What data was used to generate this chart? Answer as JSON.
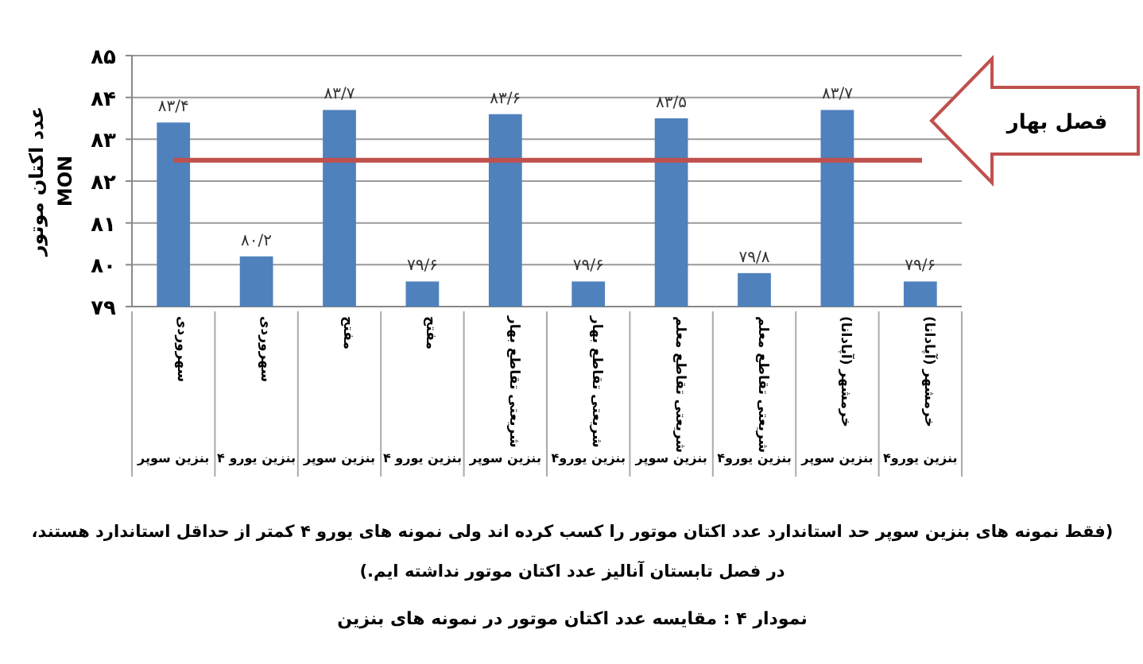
{
  "chart_data": {
    "type": "bar",
    "title": "نمودار ۴ : مقایسه عدد اکتان موتور در نمونه های بنزین",
    "ylabel": "عدد اکتان موتور\nMON",
    "categories": [
      "سهروردی\nبنزین سوپر",
      "سهروردی\nبنزین یورو ۴",
      "مفتح\nبنزین سوپر",
      "مفتح\nبنزین یورو ۴",
      "شریعتی تقاطع بهار\nبنزین سوپر",
      "شریعتی تقاطع بهار\nبنزین یورو۴",
      "شریعتی تقاطع معلم\nبنزین سوپر",
      "شریعتی تقاطع معلم\nبنزین یورو۴",
      "خرمشهر (آپادانا)\nبنزین سوپر",
      "خرمشهر (آپادانا)\nبنزین یورو۴"
    ],
    "values": [
      83.4,
      80.2,
      83.7,
      79.6,
      83.6,
      79.6,
      83.5,
      79.8,
      83.7,
      79.6
    ],
    "value_labels": [
      "۸۳/۴",
      "۸۰/۲",
      "۸۳/۷",
      "۷۹/۶",
      "۸۳/۶",
      "۷۹/۶",
      "۸۳/۵",
      "۷۹/۸",
      "۸۳/۷",
      "۷۹/۶"
    ],
    "color": "#4f81bd",
    "ylim": [
      79,
      85
    ],
    "yticks": [
      {
        "value": 79,
        "label": "۷۹"
      },
      {
        "value": 80,
        "label": "۸۰"
      },
      {
        "value": 81,
        "label": "۸۱"
      },
      {
        "value": 82,
        "label": "۸۲"
      },
      {
        "value": 83,
        "label": "۸۳"
      },
      {
        "value": 84,
        "label": "۸۴"
      },
      {
        "value": 85,
        "label": "۸۵"
      }
    ],
    "grid": "y",
    "ref_lines": [
      {
        "axis": "y",
        "value": 82.5,
        "color": "#c0504d"
      }
    ],
    "annotations": [
      "فصل بهار",
      "(فقط نمونه های بنزین سوپر حد استاندارد عدد اکتان موتور را کسب کرده اند ولی نمونه های یورو ۴ کمتر از حداقل استاندارد هستند،",
      "در فصل تابستان آنالیز عدد اکتان موتور نداشته ایم.)"
    ]
  }
}
